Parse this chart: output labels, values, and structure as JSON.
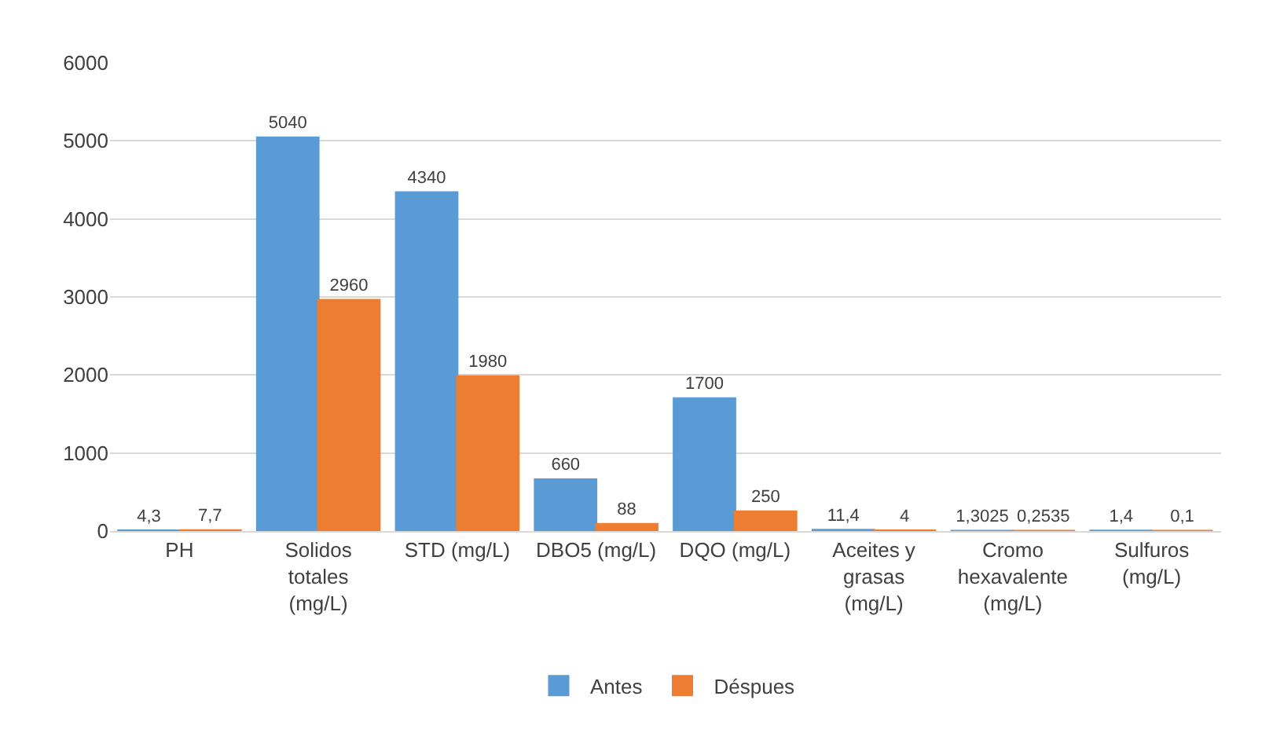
{
  "chart_data": {
    "type": "bar",
    "categories": [
      "PH",
      "Solidos totales (mg/L)",
      "STD (mg/L)",
      "DBO5 (mg/L)",
      "DQO (mg/L)",
      "Aceites y grasas (mg/L)",
      "Cromo hexavalente (mg/L)",
      "Sulfuros (mg/L)"
    ],
    "series": [
      {
        "name": "Antes",
        "color": "#5b9bd5",
        "values": [
          4.3,
          5040,
          4340,
          660,
          1700,
          11.4,
          1.3025,
          1.4
        ],
        "value_labels": [
          "4,3",
          "5040",
          "4340",
          "660",
          "1700",
          "11,4",
          "1,3025",
          "1,4"
        ]
      },
      {
        "name": "Déspues",
        "color": "#ed7d31",
        "values": [
          7.7,
          2960,
          1980,
          88,
          250,
          4,
          0.2535,
          0.1
        ],
        "value_labels": [
          "7,7",
          "2960",
          "1980",
          "88",
          "250",
          "4",
          "0,2535",
          "0,1"
        ]
      }
    ],
    "ylim": [
      0,
      6000
    ],
    "yticks": [
      0,
      1000,
      2000,
      3000,
      4000,
      5000,
      6000
    ],
    "grid": "y",
    "legend": "bottom"
  }
}
